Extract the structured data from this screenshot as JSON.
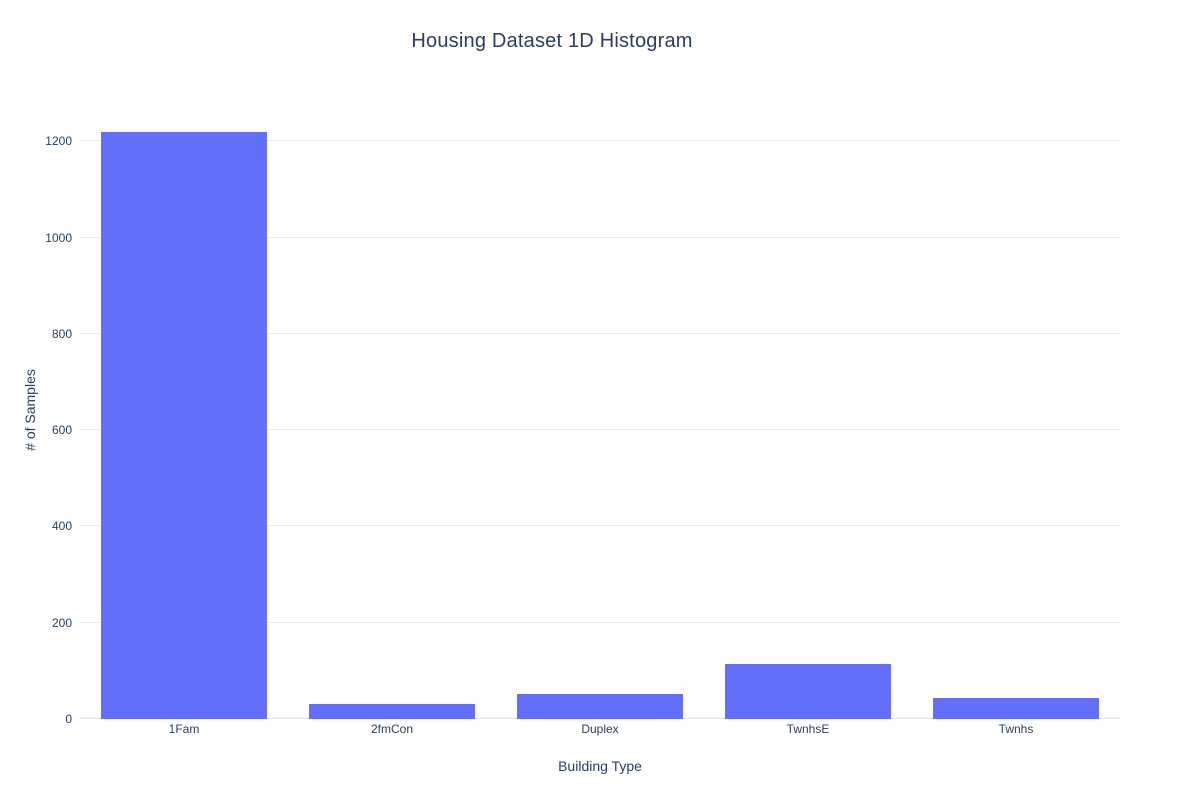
{
  "chart_data": {
    "type": "bar",
    "title": "Housing Dataset 1D Histogram",
    "xlabel": "Building Type",
    "ylabel": "# of Samples",
    "categories": [
      "1Fam",
      "2fmCon",
      "Duplex",
      "TwnhsE",
      "Twnhs"
    ],
    "values": [
      1220,
      31,
      52,
      114,
      43
    ],
    "ylim": [
      0,
      1284
    ],
    "yticks": [
      0,
      200,
      400,
      600,
      800,
      1000,
      1200
    ],
    "grid": true,
    "legend_visible": false,
    "bar_color": "#636efa",
    "text_color": "#2a3f5f",
    "grid_color": "#e9eef6",
    "background_color": "#ffffff"
  }
}
